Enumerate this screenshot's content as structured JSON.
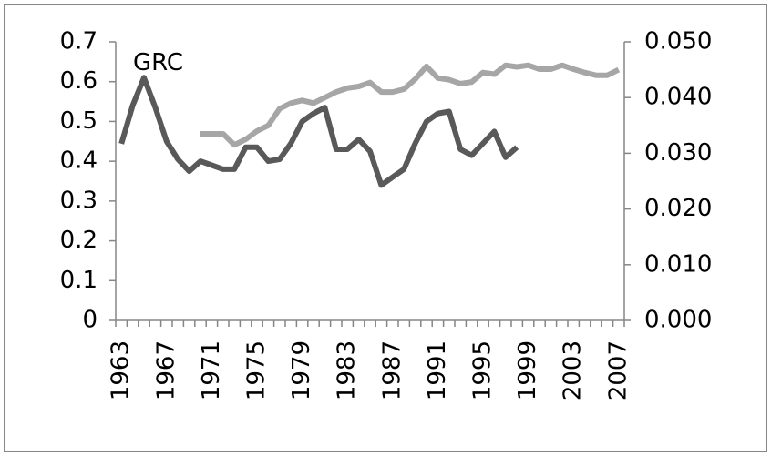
{
  "chart_data": {
    "type": "line",
    "categories": [
      "1963",
      null,
      null,
      null,
      "1967",
      null,
      null,
      null,
      "1971",
      null,
      null,
      null,
      "1975",
      null,
      null,
      null,
      "1979",
      null,
      null,
      null,
      "1983",
      null,
      null,
      null,
      "1987",
      null,
      null,
      null,
      "1991",
      null,
      null,
      null,
      "1995",
      null,
      null,
      null,
      "1999",
      null,
      null,
      null,
      "2003",
      null,
      null,
      null,
      "2007"
    ],
    "series": [
      {
        "name": "GRC",
        "color": "#595959",
        "values": [
          0.444,
          0.54,
          0.61,
          0.535,
          0.45,
          0.405,
          0.375,
          0.4,
          0.39,
          0.38,
          0.38,
          0.435,
          0.435,
          0.4,
          0.405,
          0.445,
          0.5,
          0.52,
          0.535,
          0.43,
          0.43,
          0.455,
          0.425,
          0.34,
          0.36,
          0.38,
          0.445,
          0.5,
          0.52,
          0.525,
          0.43,
          0.415,
          0.445,
          0.475,
          0.41,
          0.435,
          null,
          null,
          null,
          null,
          null,
          null,
          null,
          null,
          null
        ]
      },
      {
        "color": "#a6a6a6",
        "axis": "y2",
        "values": [
          null,
          null,
          null,
          null,
          null,
          null,
          null,
          0.0335,
          0.0335,
          0.0335,
          0.0315,
          0.0325,
          0.034,
          0.035,
          0.038,
          0.039,
          0.0395,
          0.039,
          0.04,
          0.041,
          0.0417,
          0.042,
          0.0427,
          0.041,
          0.041,
          0.0415,
          0.0433,
          0.0456,
          0.0435,
          0.0432,
          0.0425,
          0.0428,
          0.0445,
          0.0442,
          0.0458,
          0.0455,
          0.0458,
          0.0451,
          0.0451,
          0.0458,
          0.0451,
          0.0445,
          0.044,
          0.044,
          0.045
        ]
      }
    ],
    "ylim": [
      0,
      0.7
    ],
    "yticks": [
      0,
      0.1,
      0.2,
      0.3,
      0.4,
      0.5,
      0.6,
      0.7
    ],
    "y2lim": [
      0,
      0.05
    ],
    "y2ticks": [
      {
        "value": 0,
        "label": "0.000"
      },
      {
        "value": 0.01,
        "label": "0.010"
      },
      {
        "value": 0.02,
        "label": "0.020"
      },
      {
        "value": 0.03,
        "label": "0.030"
      },
      {
        "value": 0.04,
        "label": "0.040"
      },
      {
        "value": 0.05,
        "label": "0.050"
      }
    ],
    "grid": false
  }
}
